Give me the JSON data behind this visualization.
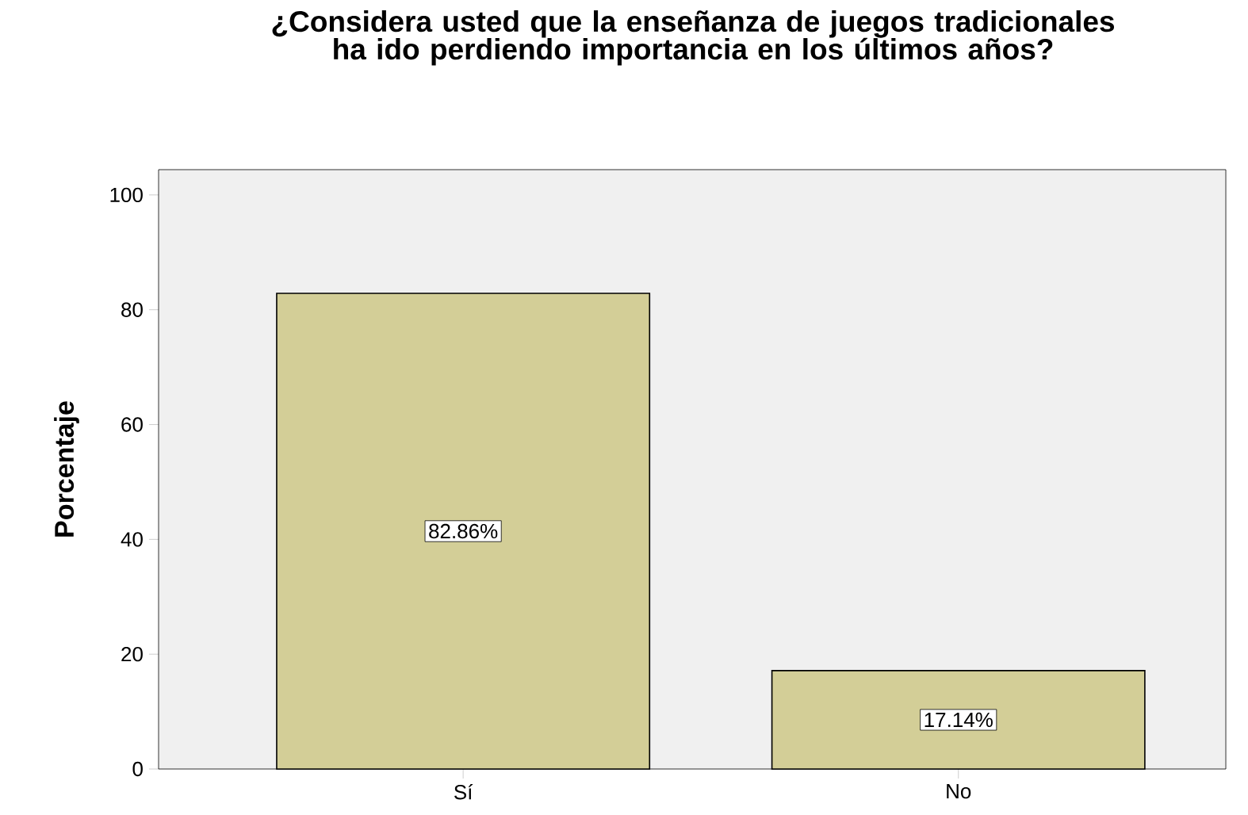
{
  "chart_data": {
    "type": "bar",
    "title": "¿Considera usted que la enseñanza de juegos tradicionales ha ido perdiendo importancia en los últimos años?",
    "ylabel": "Porcentaje",
    "categories": [
      "Sí",
      "No"
    ],
    "values": [
      82.86,
      17.14
    ],
    "color": "#d3ce97",
    "value_labels": [
      "82.86%",
      "17.14%"
    ],
    "ylim": [
      0,
      104.4
    ],
    "yticks": [
      0,
      20,
      40,
      60,
      80,
      100
    ],
    "grid": false
  }
}
